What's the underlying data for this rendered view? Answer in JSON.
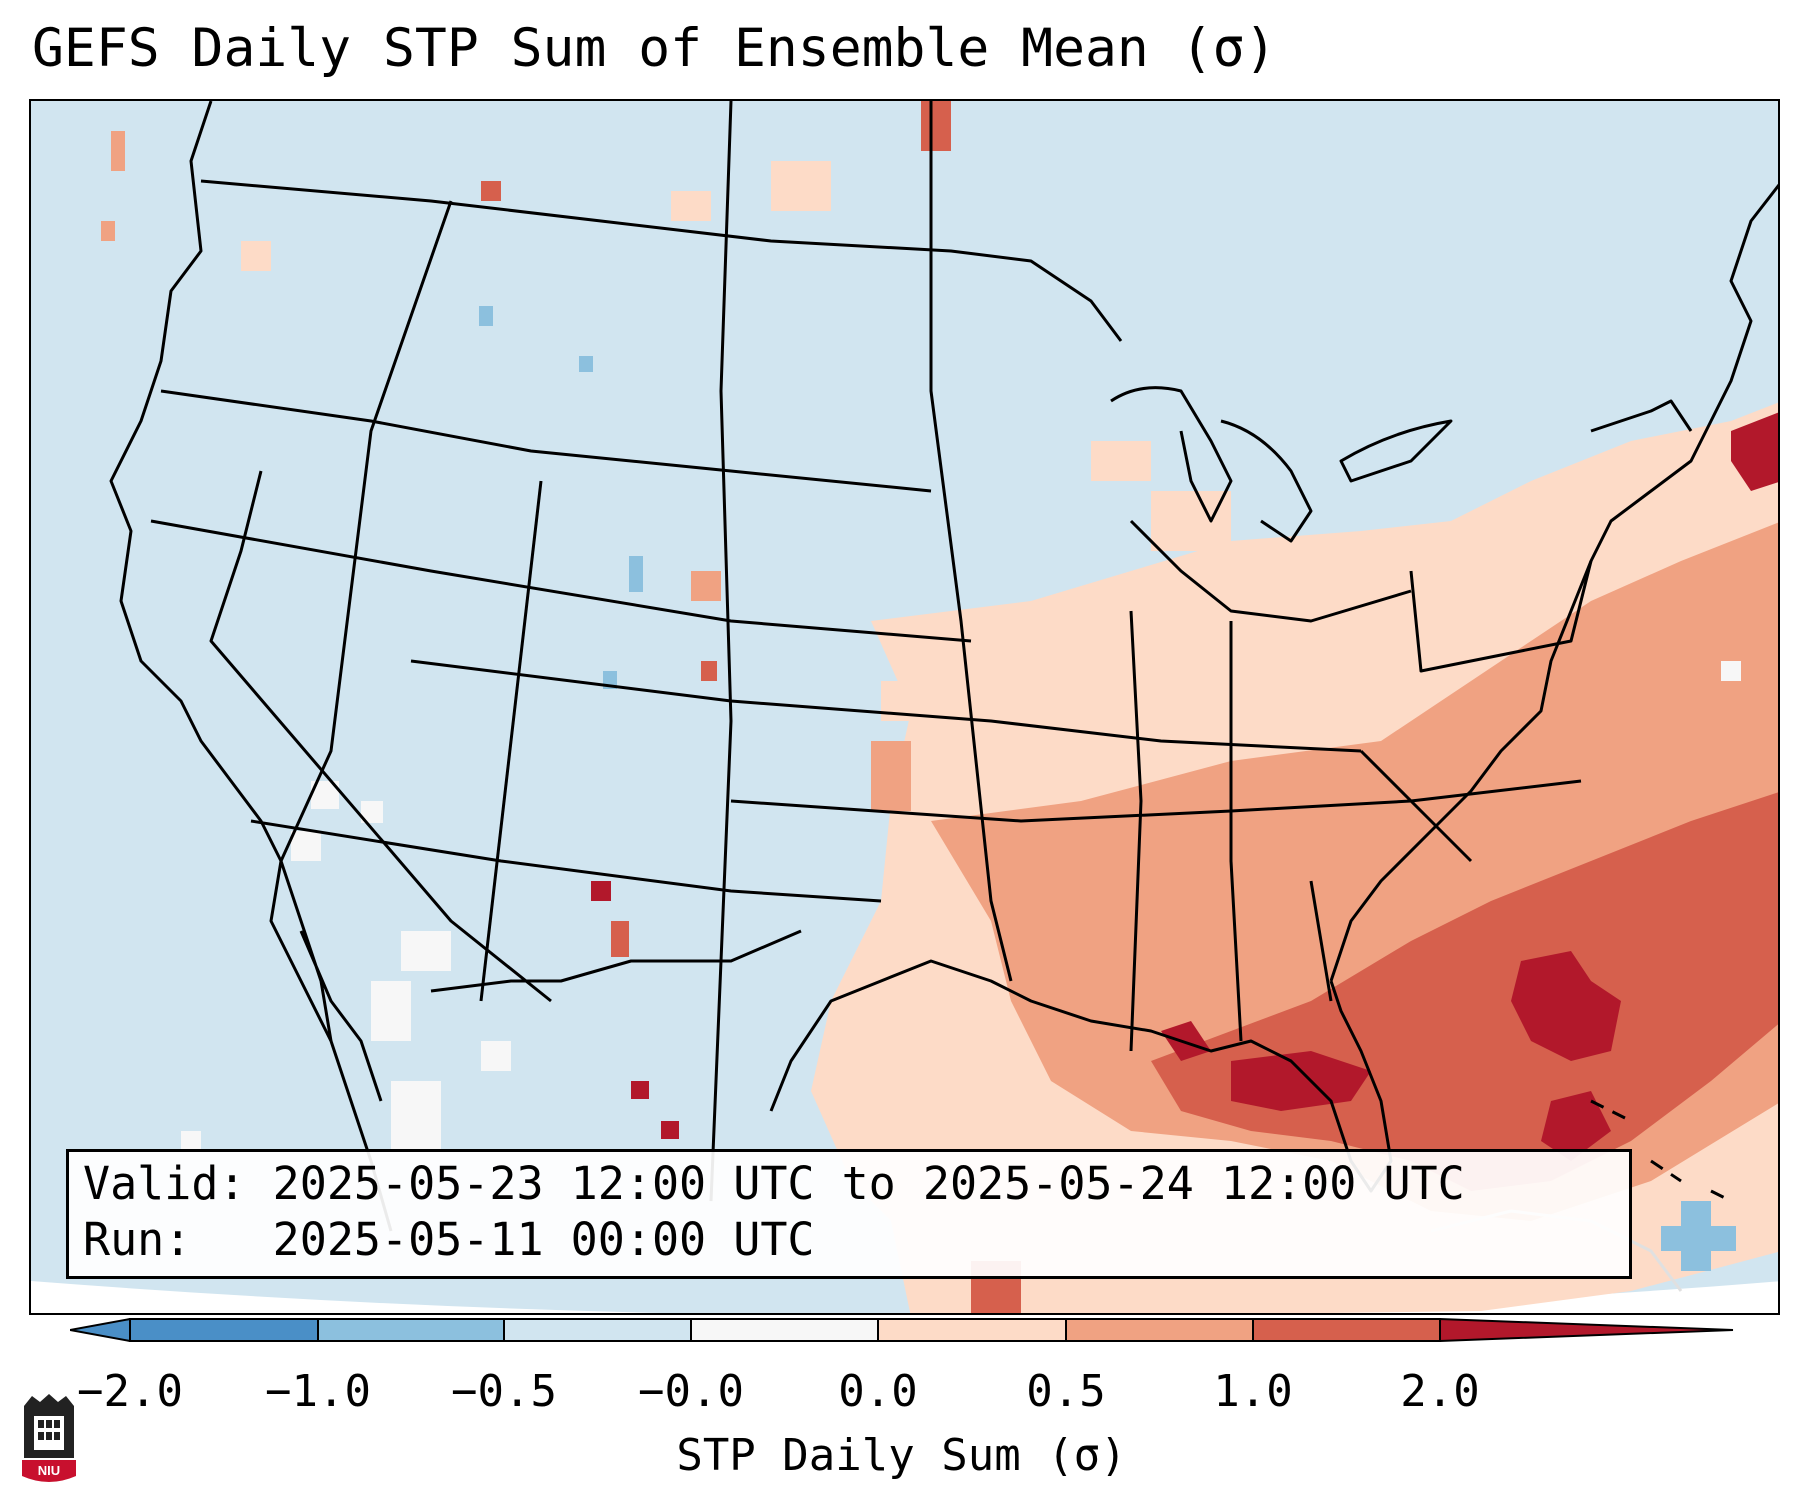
{
  "title": "GEFS Daily STP Sum of Ensemble Mean (σ)",
  "info": {
    "valid_label": "Valid:",
    "valid_value": "2025-05-23 12:00 UTC to 2025-05-24 12:00 UTC",
    "run_label": "Run:",
    "run_value": "2025-05-11 00:00 UTC"
  },
  "colorbar": {
    "label": "STP Daily Sum (σ)",
    "ticks": [
      "−2.0",
      "−1.0",
      "−0.5",
      "−0.0",
      "0.0",
      "0.5",
      "1.0",
      "2.0"
    ],
    "colors": [
      "#4a8fc7",
      "#8cc0de",
      "#d1e5f0",
      "#f7f7f7",
      "#fddbc7",
      "#f0a282",
      "#d6604d",
      "#b2182b"
    ]
  },
  "logo": {
    "text": "NIU"
  },
  "colors": {
    "ocean": "#d1e5f0",
    "neutral": "#f7f7f7",
    "light_red": "#fddbc7",
    "medium_red": "#f0a282",
    "red": "#d6604d",
    "dark_red": "#b2182b",
    "light_blue": "#8cc0de"
  }
}
